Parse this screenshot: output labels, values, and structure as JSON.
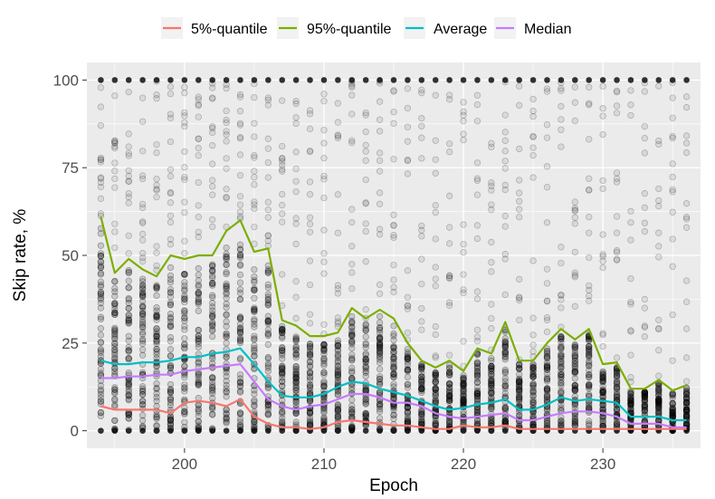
{
  "chart_data": {
    "type": "scatter+line",
    "xlabel": "Epoch",
    "ylabel": "Skip rate, %",
    "xlim": [
      193,
      237
    ],
    "ylim": [
      -5,
      105
    ],
    "x_ticks": [
      200,
      210,
      220,
      230
    ],
    "y_ticks": [
      0,
      25,
      50,
      75,
      100
    ],
    "grid": true,
    "legend_position": "top",
    "x": [
      194,
      195,
      196,
      197,
      198,
      199,
      200,
      201,
      202,
      203,
      204,
      205,
      206,
      207,
      208,
      209,
      210,
      211,
      212,
      213,
      214,
      215,
      216,
      217,
      218,
      219,
      220,
      221,
      222,
      223,
      224,
      225,
      226,
      227,
      228,
      229,
      230,
      231,
      232,
      233,
      234,
      235,
      236
    ],
    "series": [
      {
        "name": "5%-quantile",
        "color": "#f8766d",
        "values": [
          7,
          6,
          6,
          6,
          6,
          5,
          8,
          8.5,
          8,
          7,
          9,
          4,
          2,
          1,
          1,
          0.5,
          1,
          2.5,
          3,
          2.5,
          2,
          1.5,
          1.5,
          1,
          0.5,
          0.5,
          1.5,
          1,
          1,
          1.5,
          0.5,
          0.5,
          0.5,
          0.5,
          0.5,
          0.5,
          0.5,
          0.5,
          0.5,
          0.5,
          0.5,
          0.5,
          0.5
        ]
      },
      {
        "name": "95%-quantile",
        "color": "#7cae00",
        "values": [
          61,
          45,
          49,
          46,
          44,
          50,
          49,
          50,
          50,
          57,
          60,
          51,
          52,
          31.5,
          30,
          27,
          27,
          28,
          35,
          32,
          34.5,
          32,
          25,
          20,
          18,
          20,
          17,
          23.5,
          22,
          31,
          20,
          20,
          25,
          29,
          26,
          29,
          19,
          19.5,
          12,
          12,
          14.5,
          11.5,
          13
        ]
      },
      {
        "name": "Average",
        "color": "#00bfc4",
        "values": [
          20,
          19,
          19,
          19.5,
          19.5,
          20,
          21,
          21,
          22,
          22.5,
          23.5,
          19,
          14,
          10,
          9.5,
          9.5,
          10.5,
          12.5,
          14,
          13.5,
          12,
          11,
          10,
          8.5,
          7,
          6,
          6.5,
          7.5,
          8,
          9,
          6,
          6,
          7.5,
          9.5,
          8.5,
          9,
          8.5,
          8,
          4,
          4,
          4,
          3,
          3
        ]
      },
      {
        "name": "Median",
        "color": "#c77cff",
        "values": [
          15,
          15,
          15.5,
          15.5,
          16,
          16,
          17,
          17.5,
          18,
          18.5,
          19,
          14,
          9,
          7,
          6,
          7,
          7.5,
          9,
          10.5,
          10.5,
          9.5,
          8,
          8,
          7,
          5,
          4,
          3.5,
          4,
          4.5,
          5,
          3,
          3,
          4,
          5,
          5.5,
          5.5,
          5,
          4,
          2,
          2,
          2,
          1,
          1
        ]
      }
    ],
    "scatter": {
      "label": "per-sample skip rates",
      "opacity": 0.15,
      "range": [
        0,
        100
      ]
    }
  }
}
